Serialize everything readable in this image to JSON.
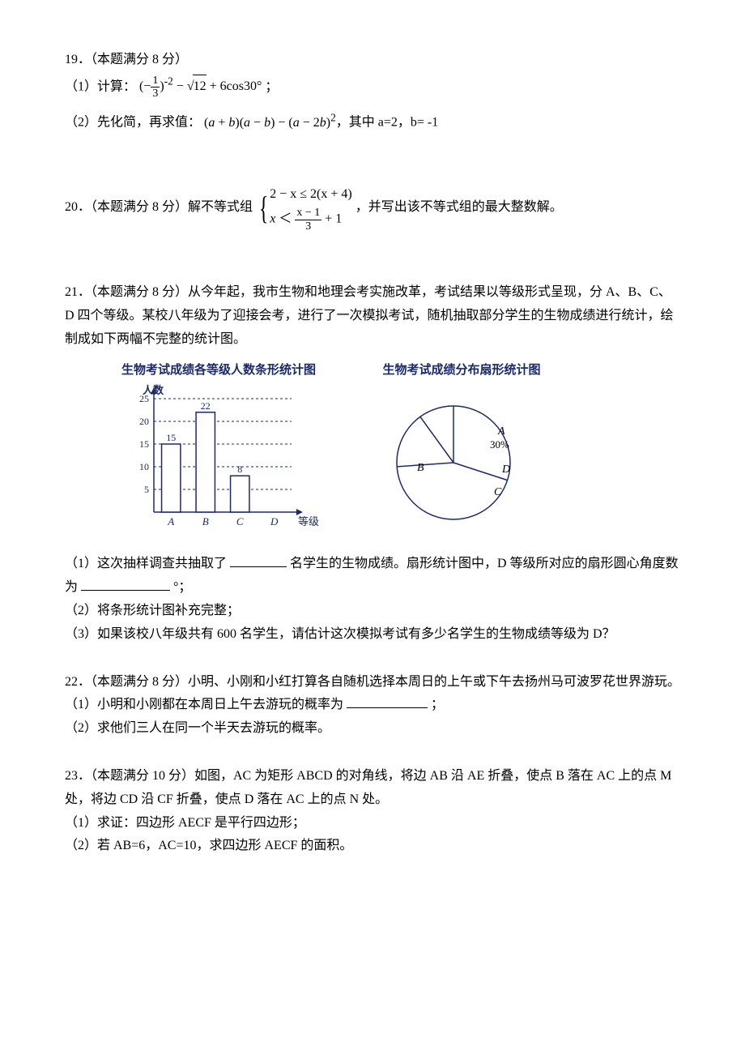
{
  "q19": {
    "heading": "19．（本题满分 8 分）",
    "part1_prefix": "（1）计算：",
    "part1_tail": "；",
    "part2_prefix": "（2）先化简，再求值：",
    "part2_expr": "(a + b)(a − b) − (a − 2b)",
    "part2_tail": "，其中 a=2，b= -1"
  },
  "q20": {
    "prefix": "20．（本题满分 8 分）解不等式组",
    "row1_lhs": "2 − x",
    "row1_op": "≤",
    "row1_rhs": "2(x + 4)",
    "row2_lhs": "x",
    "row2_op": "＜",
    "row2_frac_num": "x − 1",
    "row2_frac_den": "3",
    "row2_tail": " + 1",
    "suffix": "，并写出该不等式组的最大整数解。"
  },
  "q21": {
    "heading": "21．（本题满分 8 分）从今年起，我市生物和地理会考实施改革，考试结果以等级形式呈现，分 A、B、C、D 四个等级。某校八年级为了迎接会考，进行了一次模拟考试，随机抽取部分学生的生物成绩进行统计，绘制成如下两幅不完整的统计图。",
    "bar": {
      "title": "生物考试成绩各等级人数条形统计图",
      "ylabel": "人数",
      "yticks": [
        5,
        10,
        15,
        20,
        25
      ],
      "categories": [
        "A",
        "B",
        "C",
        "D"
      ],
      "values": [
        15,
        22,
        8,
        null
      ],
      "value_labels": [
        "15",
        "22",
        "8",
        ""
      ],
      "xlabel": "等级",
      "axis_color": "#1a2a6b",
      "bar_fill": "#ffffff",
      "bar_stroke": "#1a2a6b",
      "grid_color": "#1a2a6b"
    },
    "pie": {
      "title": "生物考试成绩分布扇形统计图",
      "labels": {
        "A": "A",
        "A_pct": "30%",
        "B": "B",
        "C": "C",
        "D": "D"
      },
      "stroke": "#1a2a6b"
    },
    "p1a": "（1）这次抽样调查共抽取了",
    "p1b": "名学生的生物成绩。扇形统计图中，D 等级所对应的扇形圆心角度数为",
    "p1c": "°；",
    "p2": "（2）将条形统计图补充完整；",
    "p3": "（3）如果该校八年级共有 600 名学生，请估计这次模拟考试有多少名学生的生物成绩等级为 D？"
  },
  "q22": {
    "heading": "22．（本题满分 8 分）小明、小刚和小红打算各自随机选择本周日的上午或下午去扬州马可波罗花世界游玩。",
    "p1a": "（1）小明和小刚都在本周日上午去游玩的概率为",
    "p1b": "；",
    "p2": "（2）求他们三人在同一个半天去游玩的概率。"
  },
  "q23": {
    "heading": "23．（本题满分 10 分）如图，AC 为矩形 ABCD 的对角线，将边 AB 沿 AE 折叠，使点 B 落在 AC 上的点 M 处，将边 CD 沿 CF 折叠，使点 D 落在 AC 上的点 N 处。",
    "p1": "（1）求证：四边形 AECF 是平行四边形；",
    "p2": "（2）若 AB=6，AC=10，求四边形 AECF 的面积。"
  }
}
